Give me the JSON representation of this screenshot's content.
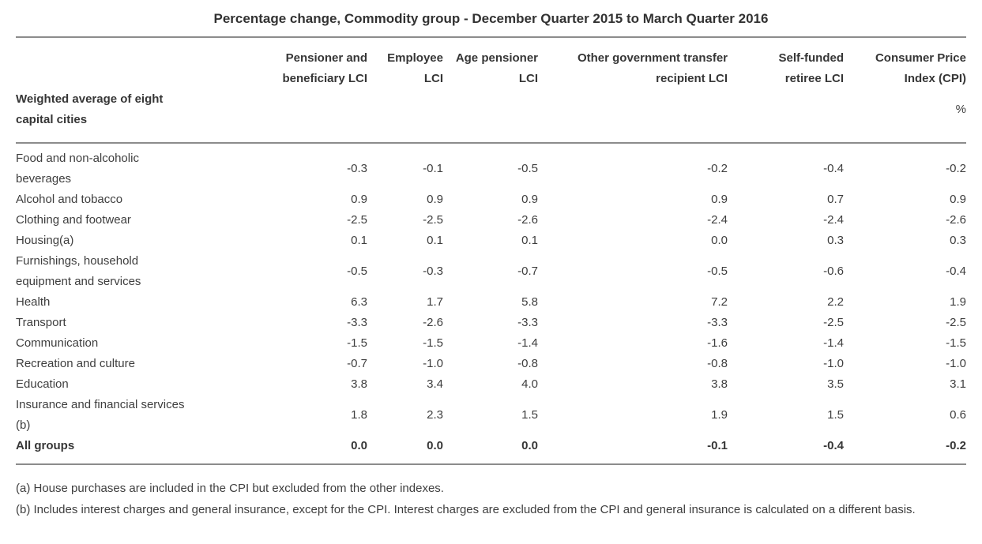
{
  "title": "Percentage change, Commodity group - December Quarter 2015 to March Quarter 2016",
  "table": {
    "stub_header": "Weighted average of eight\ncapital cities",
    "unit": "%",
    "columns": [
      "Pensioner and\nbeneficiary LCI",
      "Employee\nLCI",
      "Age pensioner\nLCI",
      "Other government transfer\nrecipient LCI",
      "Self-funded\nretiree LCI",
      "Consumer Price\nIndex (CPI)"
    ],
    "rows": [
      {
        "label": "Food and non-alcoholic\nbeverages",
        "values": [
          "-0.3",
          "-0.1",
          "-0.5",
          "-0.2",
          "-0.4",
          "-0.2"
        ],
        "bold": false
      },
      {
        "label": "Alcohol and tobacco",
        "values": [
          "0.9",
          "0.9",
          "0.9",
          "0.9",
          "0.7",
          "0.9"
        ],
        "bold": false
      },
      {
        "label": "Clothing and footwear",
        "values": [
          "-2.5",
          "-2.5",
          "-2.6",
          "-2.4",
          "-2.4",
          "-2.6"
        ],
        "bold": false
      },
      {
        "label": "Housing(a)",
        "values": [
          "0.1",
          "0.1",
          "0.1",
          "0.0",
          "0.3",
          "0.3"
        ],
        "bold": false
      },
      {
        "label": "Furnishings, household\nequipment and services",
        "values": [
          "-0.5",
          "-0.3",
          "-0.7",
          "-0.5",
          "-0.6",
          "-0.4"
        ],
        "bold": false
      },
      {
        "label": "Health",
        "values": [
          "6.3",
          "1.7",
          "5.8",
          "7.2",
          "2.2",
          "1.9"
        ],
        "bold": false
      },
      {
        "label": "Transport",
        "values": [
          "-3.3",
          "-2.6",
          "-3.3",
          "-3.3",
          "-2.5",
          "-2.5"
        ],
        "bold": false
      },
      {
        "label": "Communication",
        "values": [
          "-1.5",
          "-1.5",
          "-1.4",
          "-1.6",
          "-1.4",
          "-1.5"
        ],
        "bold": false
      },
      {
        "label": "Recreation and culture",
        "values": [
          "-0.7",
          "-1.0",
          "-0.8",
          "-0.8",
          "-1.0",
          "-1.0"
        ],
        "bold": false
      },
      {
        "label": "Education",
        "values": [
          "3.8",
          "3.4",
          "4.0",
          "3.8",
          "3.5",
          "3.1"
        ],
        "bold": false
      },
      {
        "label": "Insurance and financial services\n(b)",
        "values": [
          "1.8",
          "2.3",
          "1.5",
          "1.9",
          "1.5",
          "0.6"
        ],
        "bold": false
      },
      {
        "label": "All groups",
        "values": [
          "0.0",
          "0.0",
          "0.0",
          "-0.1",
          "-0.4",
          "-0.2"
        ],
        "bold": true
      }
    ]
  },
  "footnotes": [
    "(a) House purchases are included in the CPI but excluded from the other indexes.",
    "(b) Includes interest charges and general insurance, except for the CPI. Interest charges are excluded from the CPI and general insurance is calculated on a different basis."
  ],
  "colors": {
    "text": "#3e3e3e",
    "heading_text": "#323232",
    "rule": "#8c8c8c",
    "background": "#ffffff"
  },
  "chart_data": {
    "type": "table",
    "title": "Percentage change, Commodity group - December Quarter 2015 to March Quarter 2016",
    "unit": "%",
    "region": "Weighted average of eight capital cities",
    "columns": [
      "Pensioner and beneficiary LCI",
      "Employee LCI",
      "Age pensioner LCI",
      "Other government transfer recipient LCI",
      "Self-funded retiree LCI",
      "Consumer Price Index (CPI)"
    ],
    "rows": [
      {
        "category": "Food and non-alcoholic beverages",
        "values": [
          -0.3,
          -0.1,
          -0.5,
          -0.2,
          -0.4,
          -0.2
        ]
      },
      {
        "category": "Alcohol and tobacco",
        "values": [
          0.9,
          0.9,
          0.9,
          0.9,
          0.7,
          0.9
        ]
      },
      {
        "category": "Clothing and footwear",
        "values": [
          -2.5,
          -2.5,
          -2.6,
          -2.4,
          -2.4,
          -2.6
        ]
      },
      {
        "category": "Housing(a)",
        "values": [
          0.1,
          0.1,
          0.1,
          0.0,
          0.3,
          0.3
        ]
      },
      {
        "category": "Furnishings, household equipment and services",
        "values": [
          -0.5,
          -0.3,
          -0.7,
          -0.5,
          -0.6,
          -0.4
        ]
      },
      {
        "category": "Health",
        "values": [
          6.3,
          1.7,
          5.8,
          7.2,
          2.2,
          1.9
        ]
      },
      {
        "category": "Transport",
        "values": [
          -3.3,
          -2.6,
          -3.3,
          -3.3,
          -2.5,
          -2.5
        ]
      },
      {
        "category": "Communication",
        "values": [
          -1.5,
          -1.5,
          -1.4,
          -1.6,
          -1.4,
          -1.5
        ]
      },
      {
        "category": "Recreation and culture",
        "values": [
          -0.7,
          -1.0,
          -0.8,
          -0.8,
          -1.0,
          -1.0
        ]
      },
      {
        "category": "Education",
        "values": [
          3.8,
          3.4,
          4.0,
          3.8,
          3.5,
          3.1
        ]
      },
      {
        "category": "Insurance and financial services (b)",
        "values": [
          1.8,
          2.3,
          1.5,
          1.9,
          1.5,
          0.6
        ]
      },
      {
        "category": "All groups",
        "values": [
          0.0,
          0.0,
          0.0,
          -0.1,
          -0.4,
          -0.2
        ]
      }
    ],
    "footnotes": [
      "(a) House purchases are included in the CPI but excluded from the other indexes.",
      "(b) Includes interest charges and general insurance, except for the CPI. Interest charges are excluded from the CPI and general insurance is calculated on a different basis."
    ],
    "layout": {
      "value_alignment": "right",
      "grid": "horizontal rules only",
      "bold_rows": [
        "All groups"
      ]
    }
  }
}
